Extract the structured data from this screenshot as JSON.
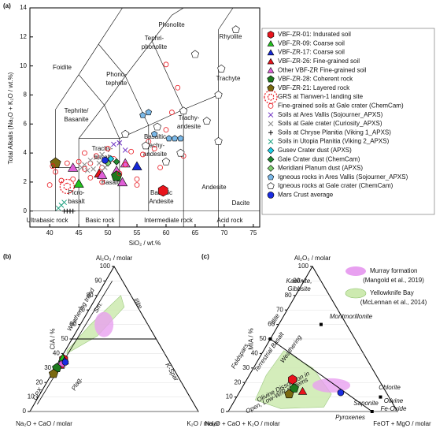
{
  "chart_data": [
    {
      "type": "scatter",
      "title": "(a)",
      "xlabel": "SiO₂ / wt.%",
      "ylabel": "Total Alkalis (Na₂O + K₂O / wt.%)",
      "xlim": [
        36.6,
        76.1
      ],
      "ylim": [
        -1.1,
        14
      ],
      "xticks": [
        40,
        45,
        50,
        55,
        60,
        65,
        70,
        75
      ],
      "yticks": [
        0,
        2,
        4,
        6,
        8,
        10,
        12,
        14
      ],
      "legend": "right",
      "annotations": [
        "Phonolite",
        "Tephri-",
        "phonolite",
        "Phono-",
        "tephrite",
        "Foidite",
        "Tephrite/",
        "Basanite",
        "Trachyte",
        "Trachy-",
        "andesite",
        "Basaltic",
        "trachy-",
        "andesite",
        "Trachy-",
        "basalt",
        "Rhyolite",
        "Picro-",
        "basalt",
        "Basalt",
        "Basaltic",
        "Andesite",
        "Andesite",
        "Dacite"
      ],
      "rock_classes": [
        "Ultrabasic rock",
        "Basic rock",
        "Intermediate rock",
        "Acid rock"
      ],
      "series": [
        {
          "name": "VBF-ZR-01: Indurated soil",
          "color": "#e8141c",
          "marker": "hexagon",
          "size": 7,
          "x": [
            59.5
          ],
          "values": [
            1.4
          ]
        },
        {
          "name": "VBF-ZR-09: Coarse soil",
          "color": "#22c21e",
          "marker": "triangle",
          "size": 7,
          "x": [
            45
          ],
          "values": [
            1.9
          ]
        },
        {
          "name": "VBF-ZR-17: Coarse soil",
          "color": "#1428d8",
          "marker": "triangle",
          "size": 7,
          "x": [
            55
          ],
          "values": [
            3.1
          ]
        },
        {
          "name": "VBF-ZR-26: Fine-grained soil",
          "color": "#e8141c",
          "marker": "triangle",
          "size": 7,
          "x": [
            48.5
          ],
          "values": [
            2.6
          ]
        },
        {
          "name": "Other VBF-ZR Fine-grained soil",
          "color": "#e060d8",
          "marker": "triangle",
          "size": 7,
          "x": [
            44,
            49,
            51.5,
            52.5,
            53
          ],
          "values": [
            3.0,
            2.5,
            2.8,
            2.0,
            3.3
          ]
        },
        {
          "name": "VBF-ZR-28: Coherent rock",
          "color": "#1e7a1e",
          "marker": "pentagon",
          "size": 7,
          "x": [
            51.5
          ],
          "values": [
            2.4
          ]
        },
        {
          "name": "VBF-ZR-21: Layered rock",
          "color": "#7a6a10",
          "marker": "pentagon",
          "size": 7,
          "x": [
            41
          ],
          "values": [
            3.3
          ]
        },
        {
          "name": "GRS at Tianwen-1 landing site",
          "color": "#e8141c",
          "marker": "ring",
          "size": 5,
          "x": [
            43
          ],
          "values": [
            1.7
          ]
        },
        {
          "name": "Fine-grained soils at Gale crater (ChemCam)",
          "color": "#e8141c",
          "marker": "circle",
          "size": 3,
          "x": [
            40,
            41,
            42,
            43,
            44,
            45,
            46,
            47,
            48,
            49,
            50,
            51,
            52,
            53,
            54,
            55,
            56,
            57,
            58,
            59,
            60,
            61,
            62,
            60,
            63,
            40.5,
            46,
            49,
            55,
            47
          ],
          "values": [
            1.8,
            2.7,
            2.1,
            3.3,
            2.2,
            3.4,
            2.9,
            2.3,
            3.8,
            2.0,
            4.3,
            3.6,
            2.6,
            3.2,
            4.1,
            2.2,
            3.9,
            4.8,
            4.3,
            3.0,
            5.6,
            6.8,
            8.5,
            10.1,
            3.8,
            3.1,
            4.0,
            3.0,
            1.8,
            3.3
          ]
        },
        {
          "name": "Soils at Ares Vallis (Sojourner_APXS)",
          "color": "#6a2cc0",
          "marker": "x",
          "size": 3,
          "x": [
            51,
            52,
            53
          ],
          "values": [
            4.6,
            4.7,
            4.2
          ]
        },
        {
          "name": "Soils at Gale crater (Curiosity_APXS)",
          "color": "#888888",
          "marker": "x",
          "size": 3,
          "x": [
            46,
            47,
            47.5,
            48,
            48.5,
            49,
            49.5,
            50,
            46.5,
            45.5
          ],
          "values": [
            3.2,
            3.5,
            2.9,
            3.7,
            3.3,
            3.9,
            3.0,
            3.6,
            2.8,
            3.0
          ]
        },
        {
          "name": "Soils at Chryse Planitia (Viking 1_APXS)",
          "color": "#000000",
          "marker": "plus",
          "size": 3,
          "x": [
            42.5,
            43,
            43.5,
            44
          ],
          "values": [
            0,
            0,
            0,
            0
          ]
        },
        {
          "name": "Soils in Utopia Planitia (Viking 2_APXS)",
          "color": "#20a080",
          "marker": "x",
          "size": 3,
          "x": [
            41.5,
            42,
            42.5
          ],
          "values": [
            0.2,
            0.4,
            0.6
          ]
        },
        {
          "name": "Gusev Crater dust (APXS)",
          "color": "#20d0e8",
          "marker": "diamond",
          "size": 4,
          "x": [
            50.5
          ],
          "values": [
            3.6
          ]
        },
        {
          "name": "Gale Crater dust (ChemCam)",
          "color": "#208a30",
          "marker": "diamond",
          "size": 4,
          "x": [
            51.5
          ],
          "values": [
            3.4
          ]
        },
        {
          "name": "Meridiani Planum dust (APXS)",
          "color": "#80d070",
          "marker": "diamond",
          "size": 4,
          "x": [
            50
          ],
          "values": [
            3.3
          ]
        },
        {
          "name": "Igneous rocks in Ares Vallis (Sojourner_APXS)",
          "color": "#7ab8e8",
          "marker": "pentagon",
          "size": 4,
          "x": [
            56,
            57,
            58,
            60.5,
            61.5,
            62.5
          ],
          "values": [
            6.6,
            6.8,
            5.3,
            5.0,
            5.0,
            5.0
          ]
        },
        {
          "name": "Igneous rocks at Gale crater (ChemCam)",
          "color": "#ffffff",
          "marker": "pentagon",
          "size": 5,
          "x": [
            72,
            65,
            69.5,
            69,
            67,
            63,
            58.5,
            56.5,
            53,
            62.5,
            69,
            60
          ],
          "values": [
            12.5,
            10.8,
            9.8,
            8.0,
            6.2,
            6.9,
            5.8,
            4.5,
            5.3,
            4.0,
            4.8,
            3.4
          ]
        },
        {
          "name": "Mars Crust average",
          "color": "#1a2ce0",
          "marker": "dot",
          "size": 4,
          "x": [
            49.5
          ],
          "values": [
            3.5
          ]
        }
      ]
    },
    {
      "type": "ternary",
      "title": "(b)",
      "ylabel": "CIA / %",
      "top_label": "Al₂O₃ / molar",
      "left_label": "Na₂O + CaO / molar",
      "right_label": "K₂O / molar",
      "ylim": [
        0,
        100
      ],
      "yticks": [
        0,
        10,
        20,
        30,
        40,
        50,
        60,
        70,
        80,
        90,
        100
      ],
      "annotations": [
        "Weathering trend",
        "Sm.",
        "Illite",
        "K-Spar",
        "Plag.",
        "CPX"
      ],
      "series": [
        {
          "color": "#e8141c",
          "marker": "hexagon",
          "size": 6,
          "x": [
            2
          ],
          "values": [
            36
          ]
        },
        {
          "color": "#22c21e",
          "marker": "triangle",
          "size": 6,
          "x": [
            1
          ],
          "values": [
            37
          ]
        },
        {
          "color": "#1428d8",
          "marker": "triangle",
          "size": 6,
          "x": [
            3
          ],
          "values": [
            35
          ]
        },
        {
          "color": "#e8141c",
          "marker": "triangle",
          "size": 6,
          "x": [
            2
          ],
          "values": [
            32
          ]
        },
        {
          "color": "#e060d8",
          "marker": "triangle",
          "size": 6,
          "x": [
            2
          ],
          "values": [
            33
          ]
        },
        {
          "color": "#1e7a1e",
          "marker": "pentagon",
          "size": 6,
          "x": [
            1
          ],
          "values": [
            30
          ]
        },
        {
          "color": "#7a6a10",
          "marker": "pentagon",
          "size": 6,
          "x": [
            1
          ],
          "values": [
            26
          ]
        },
        {
          "color": "#1a2ce0",
          "marker": "dot",
          "size": 4,
          "x": [
            4
          ],
          "values": [
            34
          ]
        }
      ]
    },
    {
      "type": "ternary",
      "title": "(c)",
      "ylabel": "MIA / %",
      "top_label": "Al₂O₃ / molar",
      "left_label": "Na₂O + CaO + K₂O / molar",
      "right_label": "FeOT + MgO / molar",
      "ylim": [
        0,
        100
      ],
      "yticks": [
        0,
        10,
        20,
        30,
        40,
        50,
        60,
        70,
        80,
        90,
        100
      ],
      "annotations": [
        "Kaolinite,",
        "Gibbsite",
        "Illite",
        "Montmorillonite",
        "Feldspars",
        "Terrestrial Basalt",
        "Weathering",
        "Olivine Dissolution in",
        "Open, Low-W/R systems",
        "Chlorite",
        "Olivine",
        "Fe-Oxide",
        "Pyroxenes",
        "Saponite"
      ],
      "legend_texts": [
        "Murray formation",
        "(Mangold et al., 2019)",
        "Yellowknife Bay",
        "(McLennan et al., 2014)"
      ],
      "series": [
        {
          "color": "#e8141c",
          "marker": "hexagon",
          "size": 6,
          "x": [
            27
          ],
          "values": [
            22
          ]
        },
        {
          "color": "#1e7a1e",
          "marker": "pentagon",
          "size": 6,
          "x": [
            31
          ],
          "values": [
            16
          ]
        },
        {
          "color": "#e8141c",
          "marker": "triangle",
          "size": 6,
          "x": [
            37
          ],
          "values": [
            14
          ]
        },
        {
          "color": "#7a6a10",
          "marker": "pentagon",
          "size": 6,
          "x": [
            30
          ],
          "values": [
            12
          ]
        },
        {
          "color": "#1a2ce0",
          "marker": "dot",
          "size": 4,
          "x": [
            60
          ],
          "values": [
            13
          ]
        }
      ]
    }
  ]
}
